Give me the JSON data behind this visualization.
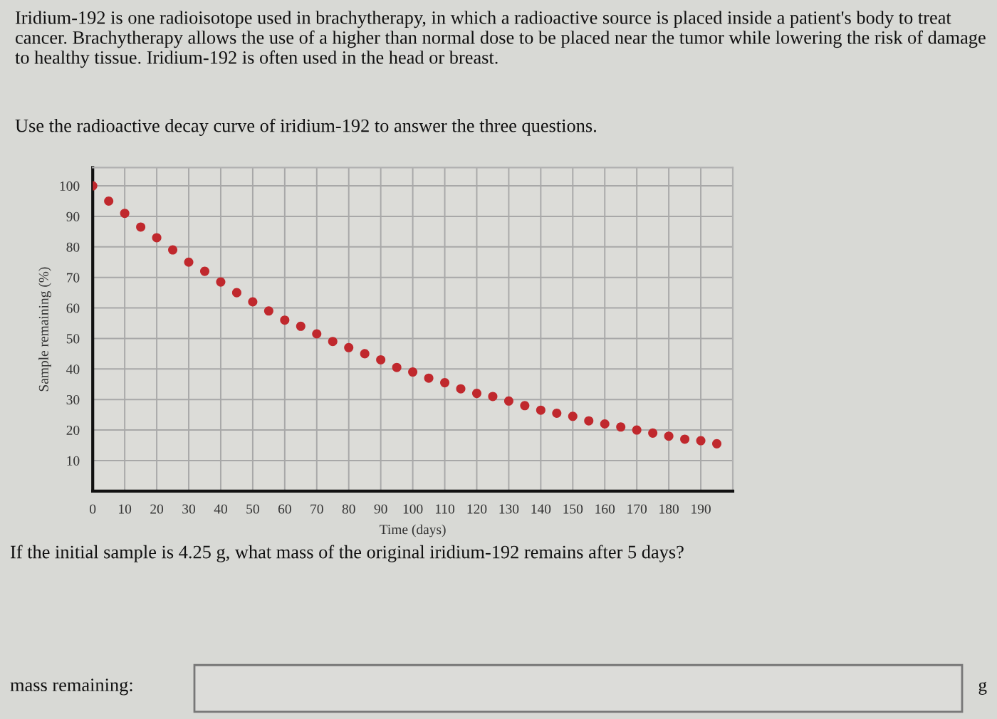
{
  "chart_data": {
    "type": "scatter",
    "title": "Iridium-192 is one radioisotope used in brachytherapy, in which a radioactive source is placed inside a patient's body to treat cancer. Brachytherapy allows the use of a higher than normal dose to be placed near the tumor while lowering the risk of damage to healthy tissue. Iridium-192 is often used in the head or breast.",
    "subtitle": "Use the radioactive decay curve of iridium-192 to answer the three questions.",
    "xlabel": "Time (days)",
    "ylabel": "Sample remaining (%)",
    "annotations": [
      "If the initial sample is 4.25 g, what mass of the original iridium-192 remains after 5 days?",
      "mass remaining:",
      "g"
    ],
    "x": [
      0,
      5,
      10,
      15,
      20,
      25,
      30,
      35,
      40,
      45,
      50,
      55,
      60,
      65,
      70,
      75,
      80,
      85,
      90,
      95,
      100,
      105,
      110,
      115,
      120,
      125,
      130,
      135,
      140,
      145,
      150,
      155,
      160,
      165,
      170,
      175,
      180,
      185,
      190,
      195
    ],
    "series": [
      {
        "color": "#c0282d",
        "values": [
          100,
          95,
          91,
          86.5,
          83,
          79,
          75,
          72,
          68.5,
          65,
          62,
          59,
          56,
          54,
          51.5,
          49,
          47,
          45,
          43,
          40.5,
          39,
          37,
          35.5,
          33.5,
          32,
          31,
          29.5,
          28,
          26.5,
          25.5,
          24.5,
          23,
          22,
          21,
          20,
          19,
          18,
          17,
          16.5,
          15.5
        ]
      }
    ],
    "xlim": [
      0,
      200
    ],
    "ylim": [
      0,
      106
    ],
    "xticks": [
      {
        "value": 0,
        "label": "0"
      },
      10,
      20,
      30,
      40,
      50,
      60,
      70,
      80,
      90,
      100,
      110,
      120,
      130,
      140,
      150,
      160,
      170,
      180,
      190
    ],
    "yticks": [
      {
        "value": 0,
        "label": null
      },
      10,
      20,
      30,
      40,
      50,
      60,
      70,
      80,
      90,
      100
    ],
    "grid": true,
    "marker": "circle"
  }
}
